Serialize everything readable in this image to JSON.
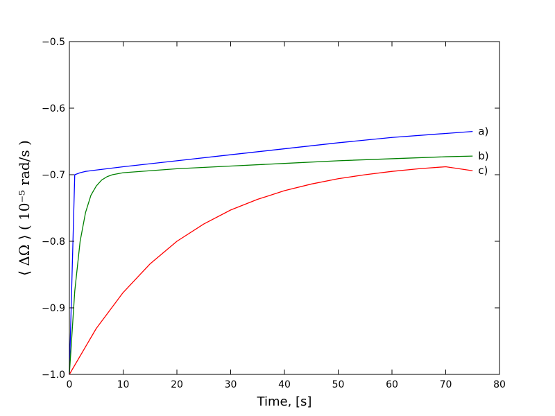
{
  "chart_data": {
    "type": "line",
    "title": "",
    "xlabel": "Time, [s]",
    "ylabel": "⟨ ΔΩ ⟩    ( 10⁻⁵ rad/s )",
    "xlim": [
      0,
      80
    ],
    "ylim": [
      -1.0,
      -0.5
    ],
    "xticks": [
      0,
      10,
      20,
      30,
      40,
      50,
      60,
      70,
      80
    ],
    "xtick_labels": [
      "0",
      "10",
      "20",
      "30",
      "40",
      "50",
      "60",
      "70",
      "80"
    ],
    "yticks": [
      -1.0,
      -0.9,
      -0.8,
      -0.7,
      -0.6,
      -0.5
    ],
    "ytick_labels": [
      "−1.0",
      "−0.9",
      "−0.8",
      "−0.7",
      "−0.6",
      "−0.5"
    ],
    "grid": false,
    "series": [
      {
        "name": "a)",
        "color": "#0000ff",
        "x": [
          0,
          1,
          2,
          3,
          5,
          10,
          20,
          30,
          40,
          50,
          60,
          70,
          75
        ],
        "y": [
          -1.0,
          -0.7,
          -0.697,
          -0.695,
          -0.693,
          -0.688,
          -0.679,
          -0.67,
          -0.661,
          -0.652,
          -0.644,
          -0.638,
          -0.635
        ]
      },
      {
        "name": "b)",
        "color": "#008000",
        "x": [
          0,
          1,
          2,
          3,
          4,
          5,
          6,
          7,
          8,
          10,
          15,
          20,
          30,
          40,
          50,
          60,
          70,
          75
        ],
        "y": [
          -1.0,
          -0.875,
          -0.8,
          -0.757,
          -0.731,
          -0.717,
          -0.708,
          -0.703,
          -0.7,
          -0.697,
          -0.694,
          -0.691,
          -0.687,
          -0.683,
          -0.679,
          -0.676,
          -0.673,
          -0.672
        ],
        "y_note_only": null
      },
      {
        "name": "c)",
        "color": "#ff0000",
        "x": [
          0,
          5,
          10,
          15,
          20,
          25,
          30,
          35,
          40,
          45,
          50,
          55,
          60,
          65,
          70,
          75
        ],
        "y": [
          -1.0,
          -0.931,
          -0.877,
          -0.834,
          -0.8,
          -0.774,
          -0.753,
          -0.737,
          -0.724,
          -0.714,
          -0.706,
          -0.7,
          -0.695,
          -0.691,
          -0.688,
          -0.694
        ]
      }
    ]
  }
}
